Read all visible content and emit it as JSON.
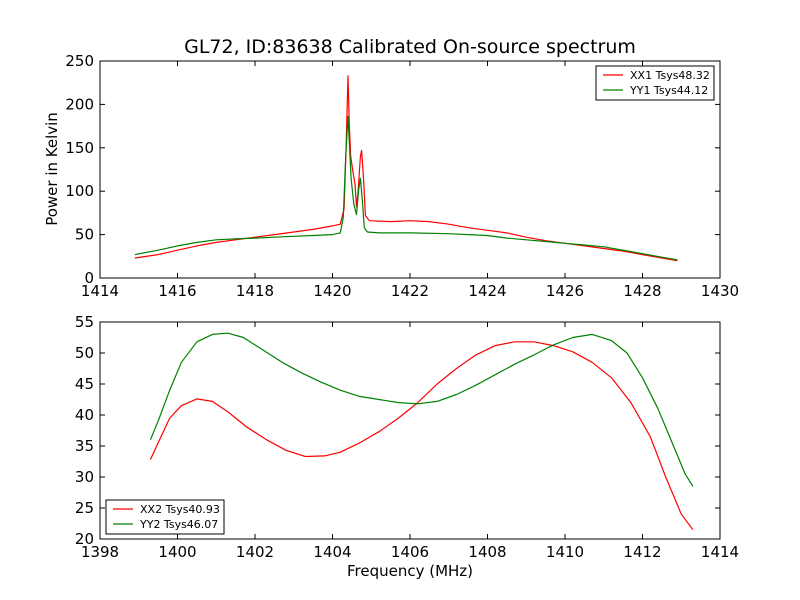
{
  "chart_data": [
    {
      "type": "line",
      "title": "GL72, ID:83638 Calibrated On-source spectrum",
      "xlabel": "",
      "ylabel": "Power in Kelvin",
      "xlim": [
        1414,
        1430
      ],
      "ylim": [
        0,
        250
      ],
      "xticks": [
        1414,
        1416,
        1418,
        1420,
        1422,
        1424,
        1426,
        1428,
        1430
      ],
      "yticks": [
        0,
        50,
        100,
        150,
        200,
        250
      ],
      "legend_position": "top-right",
      "series": [
        {
          "name": "XX1 Tsys48.32",
          "color": "#ff0000",
          "points": [
            [
              1414.9,
              23
            ],
            [
              1415.5,
              27
            ],
            [
              1416,
              32
            ],
            [
              1416.5,
              37
            ],
            [
              1417,
              41
            ],
            [
              1417.5,
              44
            ],
            [
              1418,
              47
            ],
            [
              1418.5,
              50
            ],
            [
              1419,
              53
            ],
            [
              1419.5,
              56
            ],
            [
              1420,
              60
            ],
            [
              1420.2,
              62
            ],
            [
              1420.3,
              80
            ],
            [
              1420.35,
              150
            ],
            [
              1420.4,
              233
            ],
            [
              1420.43,
              180
            ],
            [
              1420.47,
              140
            ],
            [
              1420.52,
              125
            ],
            [
              1420.58,
              108
            ],
            [
              1420.62,
              82
            ],
            [
              1420.66,
              100
            ],
            [
              1420.72,
              140
            ],
            [
              1420.75,
              147
            ],
            [
              1420.8,
              115
            ],
            [
              1420.85,
              72
            ],
            [
              1420.95,
              66
            ],
            [
              1421.5,
              65
            ],
            [
              1422,
              66
            ],
            [
              1422.5,
              65
            ],
            [
              1423,
              62
            ],
            [
              1423.5,
              58
            ],
            [
              1424,
              55
            ],
            [
              1424.5,
              52
            ],
            [
              1425,
              47
            ],
            [
              1425.5,
              43
            ],
            [
              1426,
              40
            ],
            [
              1426.5,
              37
            ],
            [
              1427,
              34
            ],
            [
              1427.5,
              31
            ],
            [
              1428,
              27
            ],
            [
              1428.5,
              23
            ],
            [
              1428.9,
              20
            ]
          ]
        },
        {
          "name": "YY1 Tsys44.12",
          "color": "#008000",
          "points": [
            [
              1414.9,
              27
            ],
            [
              1415.5,
              32
            ],
            [
              1416,
              37
            ],
            [
              1416.5,
              41
            ],
            [
              1417,
              44
            ],
            [
              1417.5,
              45
            ],
            [
              1418,
              46
            ],
            [
              1418.5,
              47
            ],
            [
              1419,
              48
            ],
            [
              1419.5,
              49
            ],
            [
              1420,
              50
            ],
            [
              1420.2,
              52
            ],
            [
              1420.28,
              70
            ],
            [
              1420.34,
              140
            ],
            [
              1420.4,
              186
            ],
            [
              1420.44,
              150
            ],
            [
              1420.48,
              115
            ],
            [
              1420.55,
              85
            ],
            [
              1420.62,
              73
            ],
            [
              1420.67,
              100
            ],
            [
              1420.72,
              115
            ],
            [
              1420.77,
              90
            ],
            [
              1420.82,
              58
            ],
            [
              1420.9,
              53
            ],
            [
              1421.2,
              52
            ],
            [
              1422,
              52
            ],
            [
              1423,
              51
            ],
            [
              1423.5,
              50
            ],
            [
              1424,
              49
            ],
            [
              1424.5,
              46
            ],
            [
              1425,
              44
            ],
            [
              1425.5,
              42
            ],
            [
              1426,
              40
            ],
            [
              1426.5,
              38
            ],
            [
              1427,
              36
            ],
            [
              1427.5,
              32
            ],
            [
              1428,
              28
            ],
            [
              1428.5,
              24
            ],
            [
              1428.9,
              21
            ]
          ]
        }
      ]
    },
    {
      "type": "line",
      "title": "",
      "xlabel": "Frequency (MHz)",
      "ylabel": "",
      "xlim": [
        1398,
        1414
      ],
      "ylim": [
        20,
        55
      ],
      "xticks": [
        1398,
        1400,
        1402,
        1404,
        1406,
        1408,
        1410,
        1412,
        1414
      ],
      "yticks": [
        20,
        25,
        30,
        35,
        40,
        45,
        50,
        55
      ],
      "legend_position": "bottom-left",
      "series": [
        {
          "name": "XX2 Tsys40.93",
          "color": "#ff0000",
          "points": [
            [
              1399.3,
              32.8
            ],
            [
              1399.5,
              35.5
            ],
            [
              1399.8,
              39.5
            ],
            [
              1400.1,
              41.5
            ],
            [
              1400.5,
              42.6
            ],
            [
              1400.9,
              42.2
            ],
            [
              1401.3,
              40.5
            ],
            [
              1401.8,
              38
            ],
            [
              1402.3,
              36
            ],
            [
              1402.8,
              34.3
            ],
            [
              1403.3,
              33.3
            ],
            [
              1403.8,
              33.4
            ],
            [
              1404.2,
              34
            ],
            [
              1404.7,
              35.5
            ],
            [
              1405.2,
              37.3
            ],
            [
              1405.7,
              39.5
            ],
            [
              1406.2,
              42
            ],
            [
              1406.7,
              45
            ],
            [
              1407.2,
              47.5
            ],
            [
              1407.7,
              49.7
            ],
            [
              1408.2,
              51.2
            ],
            [
              1408.7,
              51.8
            ],
            [
              1409.2,
              51.8
            ],
            [
              1409.7,
              51.2
            ],
            [
              1410.2,
              50.2
            ],
            [
              1410.7,
              48.5
            ],
            [
              1411.2,
              46
            ],
            [
              1411.7,
              42
            ],
            [
              1412.2,
              36.5
            ],
            [
              1412.6,
              30
            ],
            [
              1413,
              24
            ],
            [
              1413.3,
              21.5
            ]
          ]
        },
        {
          "name": "YY2 Tsys46.07",
          "color": "#008000",
          "points": [
            [
              1399.3,
              36
            ],
            [
              1399.5,
              39
            ],
            [
              1399.8,
              44
            ],
            [
              1400.1,
              48.5
            ],
            [
              1400.5,
              51.8
            ],
            [
              1400.9,
              53
            ],
            [
              1401.3,
              53.2
            ],
            [
              1401.7,
              52.5
            ],
            [
              1402.2,
              50.5
            ],
            [
              1402.7,
              48.5
            ],
            [
              1403.2,
              46.8
            ],
            [
              1403.7,
              45.3
            ],
            [
              1404.2,
              44
            ],
            [
              1404.7,
              43
            ],
            [
              1405.2,
              42.5
            ],
            [
              1405.7,
              42
            ],
            [
              1406.2,
              41.8
            ],
            [
              1406.7,
              42.2
            ],
            [
              1407.2,
              43.3
            ],
            [
              1407.7,
              44.8
            ],
            [
              1408.2,
              46.5
            ],
            [
              1408.7,
              48.2
            ],
            [
              1409.2,
              49.7
            ],
            [
              1409.7,
              51.3
            ],
            [
              1410.2,
              52.5
            ],
            [
              1410.7,
              53
            ],
            [
              1411.2,
              52
            ],
            [
              1411.6,
              50
            ],
            [
              1412,
              46
            ],
            [
              1412.4,
              41
            ],
            [
              1412.8,
              35
            ],
            [
              1413.1,
              30.5
            ],
            [
              1413.3,
              28.5
            ]
          ]
        }
      ]
    }
  ]
}
